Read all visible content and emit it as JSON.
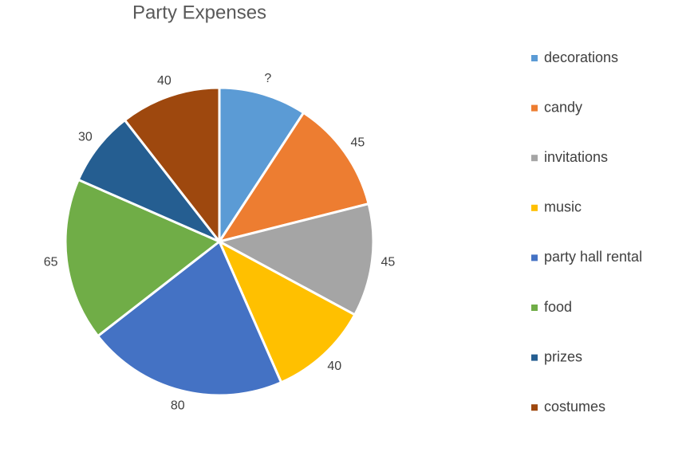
{
  "chart_data": {
    "type": "pie",
    "title": "Party Expenses",
    "categories": [
      "decorations",
      "candy",
      "invitations",
      "music",
      "party hall rental",
      "food",
      "prizes",
      "costumes"
    ],
    "values": [
      35,
      45,
      45,
      40,
      80,
      65,
      30,
      40
    ],
    "value_labels": [
      "?",
      "45",
      "45",
      "40",
      "80",
      "65",
      "30",
      "40"
    ],
    "colors": [
      "#5b9bd5",
      "#ed7d31",
      "#a5a5a5",
      "#ffc000",
      "#4472c4",
      "#70ad47",
      "#255e91",
      "#9e480e"
    ],
    "legend": "right"
  }
}
